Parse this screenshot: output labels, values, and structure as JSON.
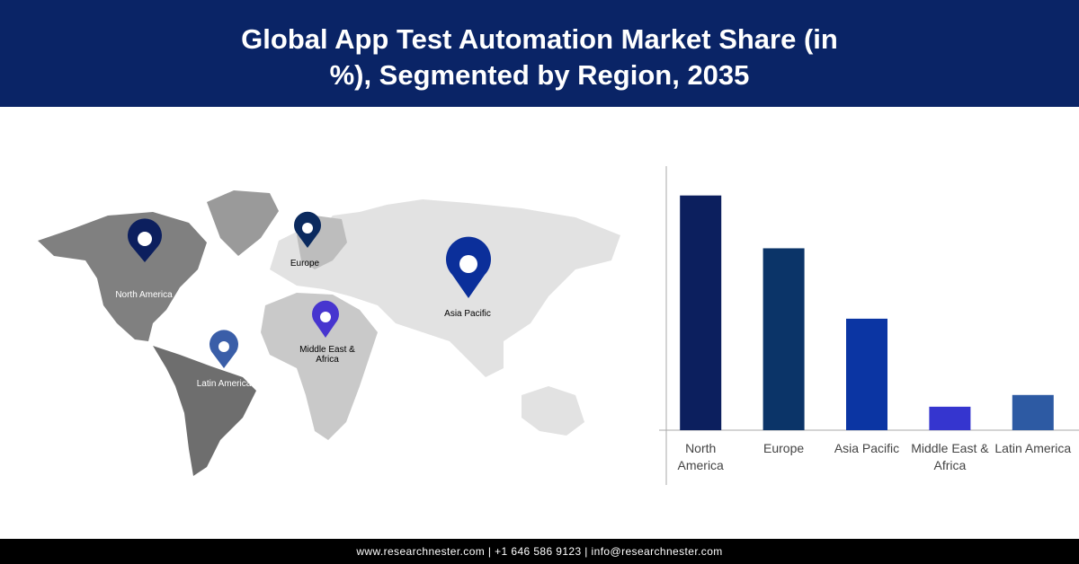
{
  "chart_data": {
    "type": "bar",
    "title": "Global App Test Automation Market Share (in %), Segmented by Region, 2035",
    "categories": [
      "North America",
      "Europe",
      "Asia Pacific",
      "Middle East & Africa",
      "Latin America"
    ],
    "values": [
      40,
      31,
      19,
      4,
      6
    ],
    "colors": [
      "#0c1f5e",
      "#0b3468",
      "#0b35a3",
      "#3535cf",
      "#2d5aa3"
    ],
    "ylim": [
      0,
      45
    ]
  },
  "map": {
    "labels": [
      "North America",
      "Europe",
      "Asia Pacific",
      "Middle East & Africa",
      "Latin America"
    ]
  },
  "footer": "www.researchnester.com | +1 646 586 9123 | info@researchnester.com"
}
